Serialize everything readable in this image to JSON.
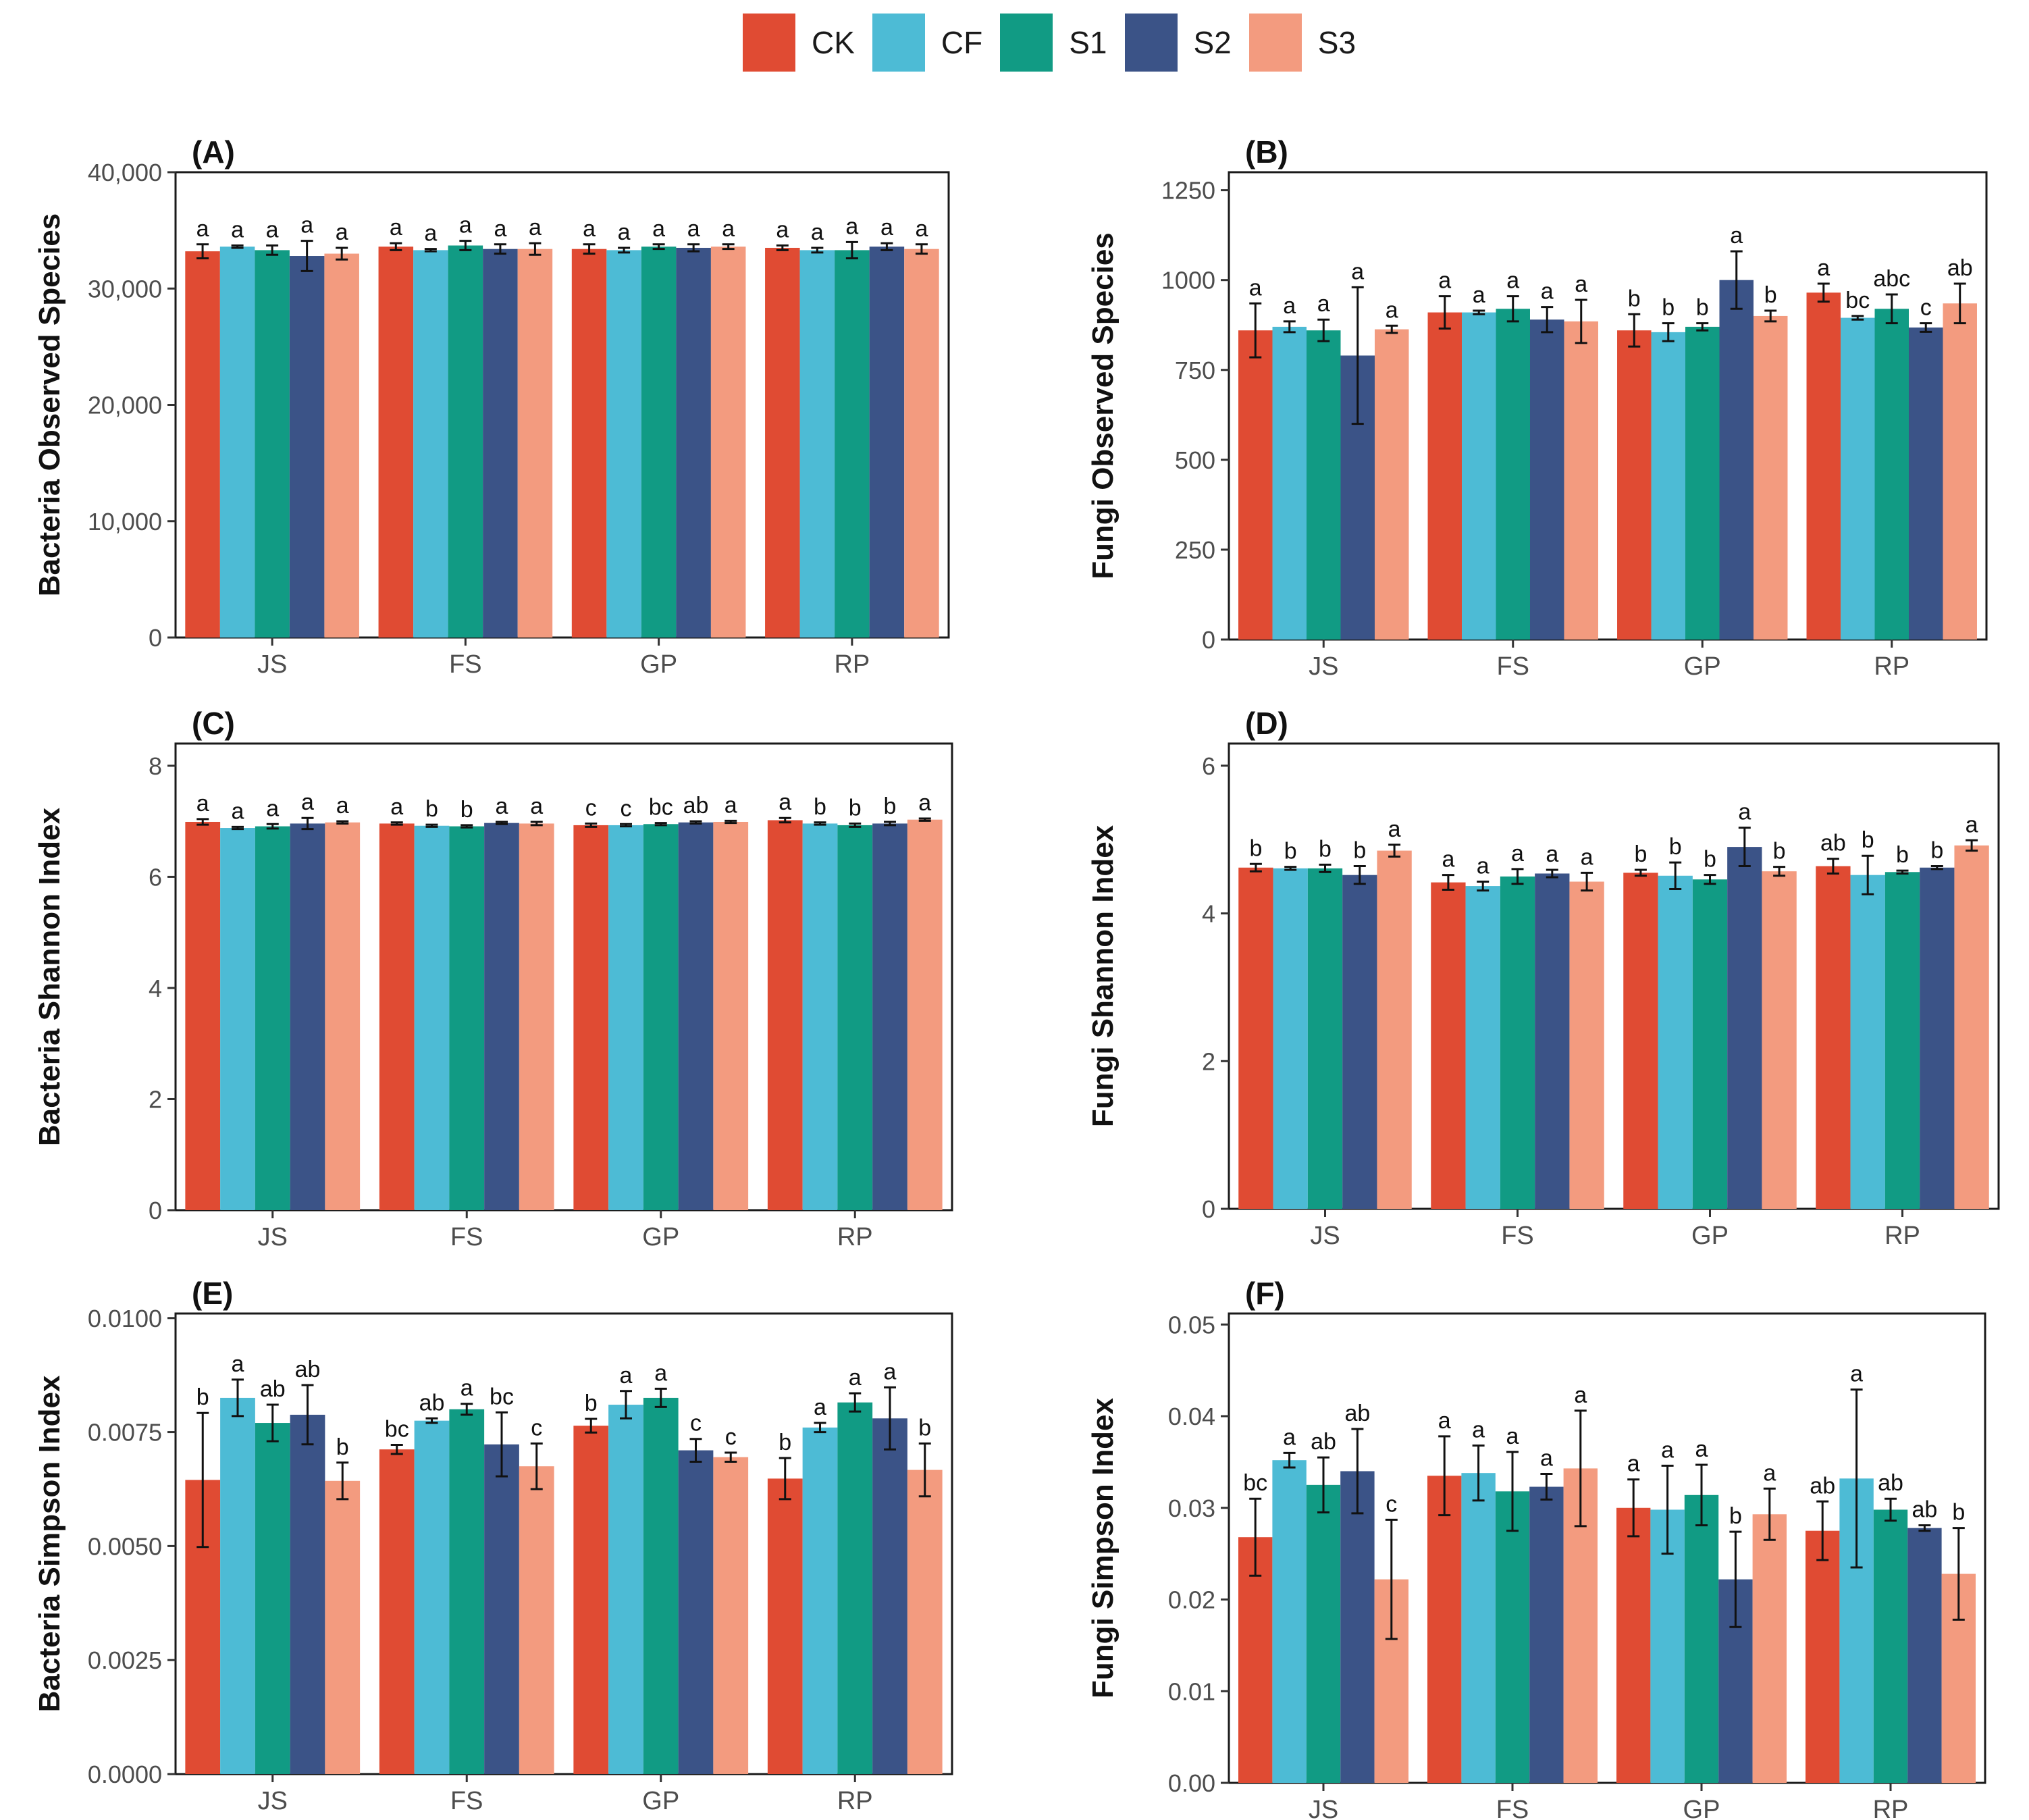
{
  "legend": {
    "items": [
      {
        "label": "CK",
        "color": "#E04B33"
      },
      {
        "label": "CF",
        "color": "#4DBBD5"
      },
      {
        "label": "S1",
        "color": "#119B84"
      },
      {
        "label": "S2",
        "color": "#3B5387"
      },
      {
        "label": "S3",
        "color": "#F39B7F"
      }
    ]
  },
  "chart_data": [
    {
      "type": "bar",
      "panel": "(A)",
      "ylabel": "Bacteria Observed Species",
      "categories": [
        "JS",
        "FS",
        "GP",
        "RP"
      ],
      "ylim": [
        0,
        40000
      ],
      "yticks": [
        0,
        10000,
        20000,
        30000,
        40000
      ],
      "ytick_labels": [
        "0",
        "10,000",
        "20,000",
        "30,000",
        "40,000"
      ],
      "series": [
        {
          "name": "CK",
          "values": [
            33200,
            33600,
            33400,
            33500
          ],
          "errors": [
            600,
            300,
            400,
            200
          ],
          "letters": [
            "a",
            "a",
            "a",
            "a"
          ]
        },
        {
          "name": "CF",
          "values": [
            33600,
            33300,
            33300,
            33300
          ],
          "errors": [
            100,
            100,
            200,
            200
          ],
          "letters": [
            "a",
            "a",
            "a",
            "a"
          ]
        },
        {
          "name": "S1",
          "values": [
            33300,
            33700,
            33600,
            33300
          ],
          "errors": [
            400,
            400,
            200,
            700
          ],
          "letters": [
            "a",
            "a",
            "a",
            "a"
          ]
        },
        {
          "name": "S2",
          "values": [
            32800,
            33400,
            33500,
            33600
          ],
          "errors": [
            1300,
            400,
            300,
            300
          ],
          "letters": [
            "a",
            "a",
            "a",
            "a"
          ]
        },
        {
          "name": "S3",
          "values": [
            33000,
            33400,
            33600,
            33400
          ],
          "errors": [
            500,
            500,
            200,
            400
          ],
          "letters": [
            "a",
            "a",
            "a",
            "a"
          ]
        }
      ]
    },
    {
      "type": "bar",
      "panel": "(B)",
      "ylabel": "Fungi Observed Species",
      "categories": [
        "JS",
        "FS",
        "GP",
        "RP"
      ],
      "ylim": [
        0,
        1300
      ],
      "yticks": [
        0,
        250,
        500,
        750,
        1000,
        1250
      ],
      "ytick_labels": [
        "0",
        "250",
        "500",
        "750",
        "1000",
        "1250"
      ],
      "series": [
        {
          "name": "CK",
          "values": [
            860,
            910,
            860,
            965
          ],
          "errors": [
            75,
            45,
            45,
            25
          ],
          "letters": [
            "a",
            "a",
            "b",
            "a"
          ]
        },
        {
          "name": "CF",
          "values": [
            870,
            910,
            855,
            895
          ],
          "errors": [
            15,
            5,
            25,
            5
          ],
          "letters": [
            "a",
            "a",
            "b",
            "bc"
          ]
        },
        {
          "name": "S1",
          "values": [
            860,
            920,
            870,
            920
          ],
          "errors": [
            30,
            35,
            10,
            40
          ],
          "letters": [
            "a",
            "a",
            "b",
            "abc"
          ]
        },
        {
          "name": "S2",
          "values": [
            790,
            890,
            1000,
            868
          ],
          "errors": [
            190,
            35,
            80,
            12
          ],
          "letters": [
            "a",
            "a",
            "a",
            "c"
          ]
        },
        {
          "name": "S3",
          "values": [
            863,
            885,
            900,
            935
          ],
          "errors": [
            10,
            60,
            15,
            55
          ],
          "letters": [
            "a",
            "a",
            "b",
            "ab"
          ]
        }
      ]
    },
    {
      "type": "bar",
      "panel": "(C)",
      "ylabel": "Bacteria Shannon Index",
      "categories": [
        "JS",
        "FS",
        "GP",
        "RP"
      ],
      "ylim": [
        0,
        8.4
      ],
      "yticks": [
        0,
        2,
        4,
        6,
        8
      ],
      "ytick_labels": [
        "0",
        "2",
        "4",
        "6",
        "8"
      ],
      "series": [
        {
          "name": "CK",
          "values": [
            6.99,
            6.96,
            6.93,
            7.02
          ],
          "errors": [
            0.05,
            0.02,
            0.03,
            0.04
          ],
          "letters": [
            "a",
            "a",
            "c",
            "a"
          ]
        },
        {
          "name": "CF",
          "values": [
            6.88,
            6.92,
            6.93,
            6.96
          ],
          "errors": [
            0.02,
            0.02,
            0.02,
            0.02
          ],
          "letters": [
            "a",
            "b",
            "c",
            "b"
          ]
        },
        {
          "name": "S1",
          "values": [
            6.91,
            6.91,
            6.95,
            6.93
          ],
          "errors": [
            0.04,
            0.02,
            0.02,
            0.03
          ],
          "letters": [
            "a",
            "b",
            "bc",
            "b"
          ]
        },
        {
          "name": "S2",
          "values": [
            6.96,
            6.97,
            6.98,
            6.96
          ],
          "errors": [
            0.1,
            0.02,
            0.02,
            0.03
          ],
          "letters": [
            "a",
            "a",
            "ab",
            "b"
          ]
        },
        {
          "name": "S3",
          "values": [
            6.98,
            6.96,
            6.99,
            7.03
          ],
          "errors": [
            0.02,
            0.03,
            0.02,
            0.02
          ],
          "letters": [
            "a",
            "a",
            "a",
            "a"
          ]
        }
      ]
    },
    {
      "type": "bar",
      "panel": "(D)",
      "ylabel": "Fungi Shannon Index",
      "categories": [
        "JS",
        "FS",
        "GP",
        "RP"
      ],
      "ylim": [
        0,
        6.3
      ],
      "yticks": [
        0,
        2,
        4,
        6
      ],
      "ytick_labels": [
        "0",
        "2",
        "4",
        "6"
      ],
      "series": [
        {
          "name": "CK",
          "values": [
            4.62,
            4.42,
            4.55,
            4.64
          ],
          "errors": [
            0.05,
            0.1,
            0.04,
            0.1
          ],
          "letters": [
            "b",
            "a",
            "b",
            "ab"
          ]
        },
        {
          "name": "CF",
          "values": [
            4.61,
            4.37,
            4.51,
            4.52
          ],
          "errors": [
            0.02,
            0.06,
            0.18,
            0.26
          ],
          "letters": [
            "b",
            "a",
            "b",
            "b"
          ]
        },
        {
          "name": "S1",
          "values": [
            4.61,
            4.5,
            4.46,
            4.56
          ],
          "errors": [
            0.05,
            0.1,
            0.06,
            0.02
          ],
          "letters": [
            "b",
            "a",
            "b",
            "b"
          ]
        },
        {
          "name": "S2",
          "values": [
            4.52,
            4.54,
            4.9,
            4.62
          ],
          "errors": [
            0.12,
            0.05,
            0.26,
            0.02
          ],
          "letters": [
            "b",
            "a",
            "a",
            "b"
          ]
        },
        {
          "name": "S3",
          "values": [
            4.85,
            4.43,
            4.57,
            4.92
          ],
          "errors": [
            0.08,
            0.12,
            0.06,
            0.07
          ],
          "letters": [
            "a",
            "a",
            "b",
            "a"
          ]
        }
      ]
    },
    {
      "type": "bar",
      "panel": "(E)",
      "ylabel": "Bacteria Simpson Index",
      "categories": [
        "JS",
        "FS",
        "GP",
        "RP"
      ],
      "ylim": [
        0,
        0.0101
      ],
      "yticks": [
        0,
        0.0025,
        0.005,
        0.0075,
        0.01
      ],
      "ytick_labels": [
        "0.0000",
        "0.0025",
        "0.0050",
        "0.0075",
        "0.0100"
      ],
      "series": [
        {
          "name": "CK",
          "values": [
            0.00645,
            0.00712,
            0.00764,
            0.00648
          ],
          "errors": [
            0.00147,
            0.0001,
            0.00015,
            0.00045
          ],
          "letters": [
            "b",
            "bc",
            "b",
            "b"
          ]
        },
        {
          "name": "CF",
          "values": [
            0.00825,
            0.00775,
            0.0081,
            0.0076
          ],
          "errors": [
            0.0004,
            5e-05,
            0.0003,
            0.0001
          ],
          "letters": [
            "a",
            "ab",
            "a",
            "a"
          ]
        },
        {
          "name": "S1",
          "values": [
            0.0077,
            0.008,
            0.00825,
            0.00815
          ],
          "errors": [
            0.0004,
            0.00012,
            0.0002,
            0.0002
          ],
          "letters": [
            "ab",
            "a",
            "a",
            "a"
          ]
        },
        {
          "name": "S2",
          "values": [
            0.00788,
            0.00723,
            0.0071,
            0.0078
          ],
          "errors": [
            0.00065,
            0.0007,
            0.00025,
            0.00068
          ],
          "letters": [
            "ab",
            "bc",
            "c",
            "a"
          ]
        },
        {
          "name": "S3",
          "values": [
            0.00643,
            0.00675,
            0.00695,
            0.00667
          ],
          "errors": [
            0.0004,
            0.0005,
            0.0001,
            0.00058
          ],
          "letters": [
            "b",
            "c",
            "c",
            "b"
          ]
        }
      ]
    },
    {
      "type": "bar",
      "panel": "(F)",
      "ylabel": "Fungi Simpson Index",
      "categories": [
        "JS",
        "FS",
        "GP",
        "RP"
      ],
      "ylim": [
        0,
        0.0512
      ],
      "yticks": [
        0,
        0.01,
        0.02,
        0.03,
        0.04,
        0.05
      ],
      "ytick_labels": [
        "0.00",
        "0.01",
        "0.02",
        "0.03",
        "0.04",
        "0.05"
      ],
      "series": [
        {
          "name": "CK",
          "values": [
            0.0268,
            0.0335,
            0.03,
            0.0275
          ],
          "errors": [
            0.0042,
            0.0043,
            0.0031,
            0.0032
          ],
          "letters": [
            "bc",
            "a",
            "a",
            "ab"
          ]
        },
        {
          "name": "CF",
          "values": [
            0.0352,
            0.0338,
            0.0298,
            0.0332
          ],
          "errors": [
            0.0008,
            0.003,
            0.0048,
            0.0097
          ],
          "letters": [
            "a",
            "a",
            "a",
            "a"
          ]
        },
        {
          "name": "S1",
          "values": [
            0.0325,
            0.0318,
            0.0314,
            0.0298
          ],
          "errors": [
            0.003,
            0.0043,
            0.0033,
            0.0012
          ],
          "letters": [
            "ab",
            "a",
            "a",
            "ab"
          ]
        },
        {
          "name": "S2",
          "values": [
            0.034,
            0.0323,
            0.0222,
            0.0278
          ],
          "errors": [
            0.0046,
            0.0014,
            0.0052,
            0.0003
          ],
          "letters": [
            "ab",
            "a",
            "b",
            "ab"
          ]
        },
        {
          "name": "S3",
          "values": [
            0.0222,
            0.0343,
            0.0293,
            0.0228
          ],
          "errors": [
            0.0065,
            0.0063,
            0.0028,
            0.005
          ],
          "letters": [
            "c",
            "a",
            "a",
            "b"
          ]
        }
      ]
    }
  ]
}
